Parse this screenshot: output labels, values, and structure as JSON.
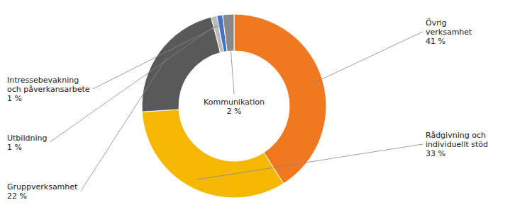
{
  "chart_data": {
    "type": "donut",
    "categories": [
      "Övrig\nverksamhet",
      "Rådgivning och\nindividuellt stöd",
      "Gruppverksamhet",
      "Utbildning",
      "Intressebevakning\noch påverkansarbete",
      "Kommunikation"
    ],
    "values": [
      41,
      33,
      22,
      1,
      1,
      2
    ],
    "value_labels": [
      "41 %",
      "33 %",
      "22 %",
      "1 %",
      "1 %",
      "2 %"
    ],
    "data_labels": true,
    "colors": [
      "#F07820",
      "#F5B800",
      "#595959",
      "#BBBBBB",
      "#4472C4",
      "#888888"
    ]
  }
}
